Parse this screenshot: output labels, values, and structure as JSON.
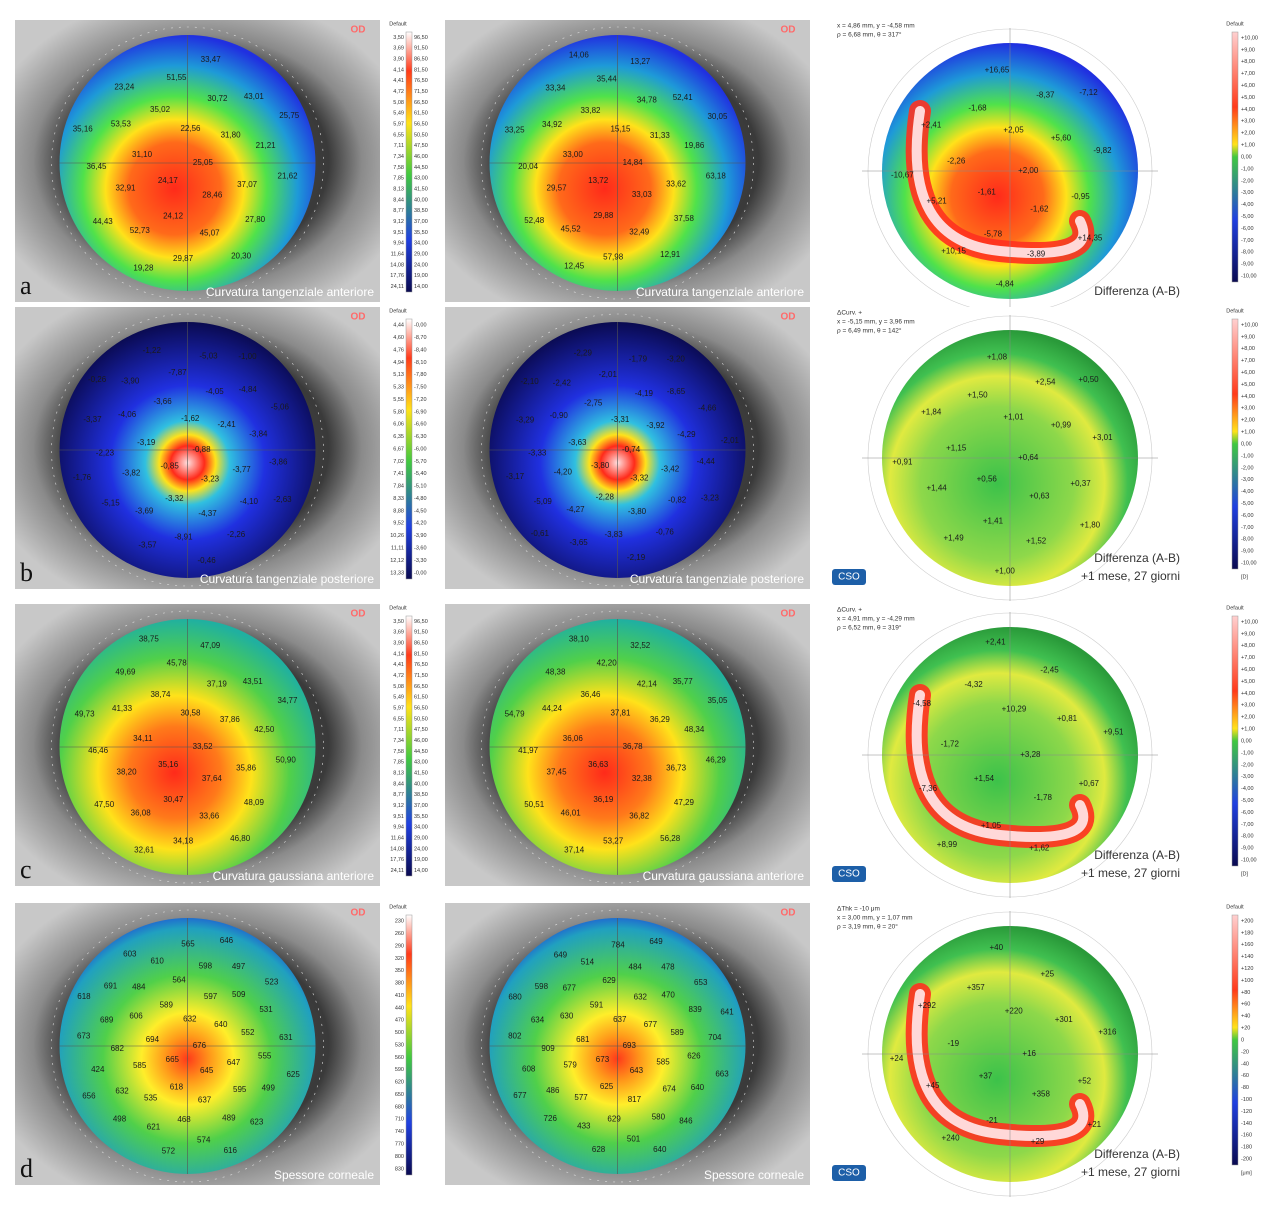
{
  "rows": [
    {
      "letter": "a",
      "panels": [
        {
          "caption": "Curvatura tangenziale anteriore",
          "eye": "OD",
          "numbers": [
            "25,05",
            "24,17",
            "22,56",
            "28,46",
            "31,10",
            "31,80",
            "24,12",
            "35,02",
            "37,07",
            "32,91",
            "30,72",
            "45,07",
            "53,53",
            "21,21",
            "52,73",
            "51,55",
            "27,80",
            "36,45",
            "43,01",
            "29,87",
            "23,24",
            "21,62",
            "44,43",
            "33,47",
            "20,30",
            "35,16",
            "25,75",
            "19,28"
          ]
        },
        {
          "caption": "Curvatura tangenziale anteriore",
          "eye": "OD",
          "numbers": [
            "14,84",
            "13,72",
            "15,15",
            "33,03",
            "33,00",
            "31,33",
            "29,88",
            "33,82",
            "33,62",
            "29,57",
            "34,78",
            "32,49",
            "34,92",
            "19,86",
            "45,52",
            "35,44",
            "37,58",
            "20,04",
            "52,41",
            "57,98",
            "33,34",
            "63,18",
            "52,48",
            "13,27",
            "12,91",
            "33,25",
            "30,05",
            "12,45",
            "14,06"
          ]
        }
      ],
      "diff": {
        "caption": "Differenza (A-B)",
        "subcaption": null,
        "info": [
          "x = 4,86 mm, y = -4,58 mm",
          "ρ = 6,68 mm, θ = 317°"
        ],
        "numbers": [
          "+2,00",
          "-1,61",
          "+2,05",
          "-1,62",
          "-2,26",
          "+5,60",
          "-5,78",
          "-1,68",
          "-0,95",
          "+5,21",
          "-8,37",
          "-3,89",
          "+2,41",
          "-9,82",
          "+10,15",
          "+16,65",
          "+14,35",
          "-10,67",
          "-7,12",
          "-4,84"
        ]
      },
      "scale": {
        "header": "Default",
        "left": [
          "3,50",
          "3,69",
          "3,90",
          "4,14",
          "4,41",
          "4,72",
          "5,08",
          "5,49",
          "5,97",
          "6,55",
          "7,11",
          "7,34",
          "7,58",
          "7,85",
          "8,13",
          "8,44",
          "8,77",
          "9,12",
          "9,51",
          "9,94",
          "11,64",
          "14,08",
          "17,76",
          "24,11"
        ],
        "right": [
          "96,50",
          "91,50",
          "86,50",
          "81,50",
          "76,50",
          "71,50",
          "66,50",
          "61,50",
          "56,50",
          "50,50",
          "47,50",
          "46,00",
          "44,50",
          "43,00",
          "41,50",
          "40,00",
          "38,50",
          "37,00",
          "35,50",
          "34,00",
          "29,00",
          "24,00",
          "19,00",
          "14,00"
        ]
      }
    },
    {
      "letter": "b",
      "panels": [
        {
          "caption": "Curvatura tangenziale posteriore",
          "eye": "OD",
          "numbers": [
            "-0,88",
            "-0,85",
            "-1,62",
            "-3,23",
            "-3,19",
            "-2,41",
            "-3,32",
            "-3,66",
            "-3,77",
            "-3,82",
            "-4,05",
            "-4,37",
            "-4,06",
            "-3,84",
            "-3,69",
            "-7,87",
            "-4,10",
            "-2,23",
            "-4,84",
            "-8,91",
            "-3,90",
            "-3,86",
            "-5,15",
            "-5,03",
            "-2,26",
            "-3,37",
            "-5,06",
            "-3,57",
            "-1,22",
            "-2,63",
            "-1,76",
            "-1,00",
            "-0,46",
            "-0,26"
          ]
        },
        {
          "caption": "Curvatura tangenziale posteriore",
          "eye": "OD",
          "numbers": [
            "-0,74",
            "-3,80",
            "-3,31",
            "-3,32",
            "-3,63",
            "-3,92",
            "-2,28",
            "-2,75",
            "-3,42",
            "-4,20",
            "-4,19",
            "-3,80",
            "-0,90",
            "-4,29",
            "-4,27",
            "-2,01",
            "-0,82",
            "-3,33",
            "-8,65",
            "-3,83",
            "-2,42",
            "-4,44",
            "-5,09",
            "-1,79",
            "-0,76",
            "-3,29",
            "-4,66",
            "-3,65",
            "-2,29",
            "-3,23",
            "-3,17",
            "-3,20",
            "-2,19",
            "-2,10",
            "-2,01",
            "-0,61"
          ]
        }
      ],
      "diff": {
        "caption": "Differenza (A-B)",
        "subcaption": "+1 mese, 27 giorni",
        "info": [
          "ΔCurv. +",
          "x = -5,15 mm, y = 3,96 mm",
          "ρ = 6,49 mm, θ = 142°"
        ],
        "numbers": [
          "+0,64",
          "+0,56",
          "+1,01",
          "+0,63",
          "+1,15",
          "+0,99",
          "+1,41",
          "+1,50",
          "+0,37",
          "+1,44",
          "+2,54",
          "+1,52",
          "+1,84",
          "+3,01",
          "+1,49",
          "+1,08",
          "+1,80",
          "+0,91",
          "+0,50",
          "+1,00"
        ]
      },
      "scale": {
        "header": "Default",
        "left": [
          "4,44",
          "4,60",
          "4,76",
          "4,94",
          "5,13",
          "5,33",
          "5,55",
          "5,80",
          "6,06",
          "6,35",
          "6,67",
          "7,02",
          "7,41",
          "7,84",
          "8,33",
          "8,88",
          "9,52",
          "10,26",
          "11,11",
          "12,12",
          "13,33"
        ],
        "right": [
          "-0,00",
          "-8,70",
          "-8,40",
          "-8,10",
          "-7,80",
          "-7,50",
          "-7,20",
          "-6,90",
          "-6,60",
          "-6,30",
          "-6,00",
          "-5,70",
          "-5,40",
          "-5,10",
          "-4,80",
          "-4,50",
          "-4,20",
          "-3,90",
          "-3,60",
          "-3,30",
          "-0,00"
        ]
      }
    },
    {
      "letter": "c",
      "panels": [
        {
          "caption": "Curvatura gaussiana anteriore",
          "eye": "OD",
          "numbers": [
            "33,52",
            "35,16",
            "30,58",
            "37,64",
            "34,11",
            "37,86",
            "30,47",
            "38,74",
            "35,86",
            "38,20",
            "37,19",
            "33,66",
            "41,33",
            "42,50",
            "36,08",
            "45,78",
            "48,09",
            "46,46",
            "43,51",
            "34,18",
            "49,69",
            "50,90",
            "47,50",
            "47,09",
            "46,80",
            "49,73",
            "34,77",
            "32,61",
            "38,75"
          ]
        },
        {
          "caption": "Curvatura gaussiana anteriore",
          "eye": "OD",
          "numbers": [
            "36,78",
            "36,63",
            "37,81",
            "32,38",
            "36,06",
            "36,29",
            "36,19",
            "36,46",
            "36,73",
            "37,45",
            "42,14",
            "36,82",
            "44,24",
            "48,34",
            "46,01",
            "42,20",
            "47,29",
            "41,97",
            "35,77",
            "53,27",
            "48,38",
            "46,29",
            "50,51",
            "32,52",
            "56,28",
            "54,79",
            "35,05",
            "37,14",
            "38,10"
          ]
        }
      ],
      "diff": {
        "caption": "Differenza (A-B)",
        "subcaption": "+1 mese, 27 giorni",
        "info": [
          "ΔCurv. +",
          "x = 4,91 mm, y = -4,29 mm",
          "ρ = 6,52 mm, θ = 319°"
        ],
        "numbers": [
          "+3,28",
          "+1,54",
          "+10,29",
          "-1,78",
          "-1,72",
          "+0,81",
          "+1,05",
          "-4,32",
          "+0,67",
          "-7,36",
          "-2,45",
          "+1,62",
          "-4,58",
          "+9,51",
          "+8,99",
          "+2,41"
        ]
      },
      "scale": {
        "header": "Default",
        "left": [
          "3,50",
          "3,69",
          "3,90",
          "4,14",
          "4,41",
          "4,72",
          "5,08",
          "5,49",
          "5,97",
          "6,55",
          "7,11",
          "7,34",
          "7,58",
          "7,85",
          "8,13",
          "8,44",
          "8,77",
          "9,12",
          "9,51",
          "9,94",
          "11,64",
          "14,08",
          "17,76",
          "24,11"
        ],
        "right": [
          "96,50",
          "91,50",
          "86,50",
          "81,50",
          "76,50",
          "71,50",
          "66,50",
          "61,50",
          "56,50",
          "50,50",
          "47,50",
          "46,00",
          "44,50",
          "43,00",
          "41,50",
          "40,00",
          "38,50",
          "37,00",
          "35,50",
          "34,00",
          "29,00",
          "24,00",
          "19,00",
          "14,00"
        ]
      }
    },
    {
      "letter": "d",
      "panels": [
        {
          "caption": "Spessore corneale",
          "eye": "OD",
          "numbers": [
            "676",
            "665",
            "632",
            "645",
            "694",
            "640",
            "618",
            "589",
            "647",
            "585",
            "597",
            "637",
            "606",
            "552",
            "535",
            "564",
            "595",
            "682",
            "509",
            "468",
            "484",
            "555",
            "632",
            "598",
            "489",
            "689",
            "531",
            "621",
            "610",
            "499",
            "424",
            "497",
            "574",
            "691",
            "631",
            "498",
            "565",
            "623",
            "673",
            "523",
            "572",
            "603",
            "625",
            "656",
            "646",
            "616",
            "618"
          ]
        },
        {
          "caption": "Spessore corneale",
          "eye": "OD",
          "numbers": [
            "693",
            "673",
            "637",
            "643",
            "681",
            "677",
            "625",
            "591",
            "585",
            "579",
            "632",
            "817",
            "630",
            "589",
            "577",
            "629",
            "674",
            "909",
            "470",
            "629",
            "677",
            "626",
            "486",
            "484",
            "580",
            "634",
            "839",
            "433",
            "514",
            "640",
            "608",
            "478",
            "501",
            "598",
            "704",
            "726",
            "784",
            "846",
            "802",
            "653",
            "628",
            "649",
            "663",
            "677",
            "649",
            "640",
            "680",
            "641"
          ]
        }
      ],
      "diff": {
        "caption": "Differenza (A-B)",
        "subcaption": "+1 mese, 27 giorni",
        "info": [
          "ΔThk = -10 μm",
          "x = 3,00 mm, y = 1,07 mm",
          "ρ = 3,19 mm, θ = 20°"
        ],
        "numbers": [
          "+16",
          "+37",
          "+220",
          "+358",
          "-19",
          "+301",
          "-21",
          "+357",
          "+52",
          "+45",
          "+25",
          "+29",
          "+292",
          "+316",
          "+240",
          "+40",
          "+21",
          "+24"
        ]
      },
      "scale": {
        "header": "Default",
        "left": [
          "230",
          "260",
          "290",
          "320",
          "350",
          "380",
          "410",
          "440",
          "470",
          "500",
          "530",
          "560",
          "590",
          "620",
          "650",
          "680",
          "710",
          "740",
          "770",
          "800",
          "830"
        ],
        "right": []
      }
    }
  ],
  "diff_scale": {
    "header": "Default",
    "curvature": [
      "+10,00",
      "+9,00",
      "+8,00",
      "+7,00",
      "+6,00",
      "+5,00",
      "+4,00",
      "+3,00",
      "+2,00",
      "+1,00",
      "0,00",
      "-1,00",
      "-2,00",
      "-3,00",
      "-4,00",
      "-5,00",
      "-6,00",
      "-7,00",
      "-8,00",
      "-9,00",
      "-10,00"
    ],
    "curvature_unit": "[D]",
    "thickness": [
      "+200",
      "+180",
      "+160",
      "+140",
      "+120",
      "+100",
      "+80",
      "+60",
      "+40",
      "+20",
      "0",
      "-20",
      "-40",
      "-60",
      "-80",
      "-100",
      "-120",
      "-140",
      "-160",
      "-180",
      "-200"
    ],
    "thickness_unit": "[μm]"
  },
  "logo": "CSO"
}
